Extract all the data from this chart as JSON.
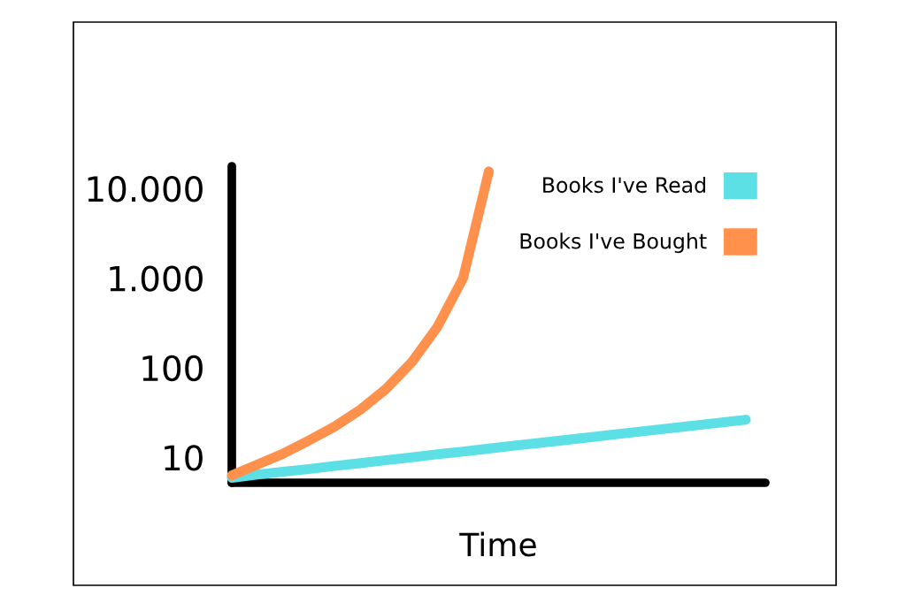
{
  "chart_data": {
    "type": "line",
    "xlabel": "Time",
    "categories": [
      null,
      null,
      null,
      null,
      null,
      null,
      null,
      null,
      null,
      null,
      null,
      null,
      null,
      null,
      null,
      null,
      null,
      null,
      null,
      null,
      null
    ],
    "series": [
      {
        "name": "Books I've Read",
        "color": "#5ce0e6",
        "values": [
          5.9,
          6.4,
          6.9,
          7.4,
          8.0,
          8.6,
          9.3,
          10,
          10.8,
          11.6,
          12.5,
          13.5,
          14.5,
          15.6,
          16.8,
          18.1,
          19.5,
          21,
          22.6,
          24.4,
          26.3
        ]
      },
      {
        "name": "Books I've Bought",
        "color": "#ff914d",
        "values": [
          6.3,
          8.3,
          11,
          15.4,
          22,
          34,
          58,
          115,
          285,
          1000,
          15500,
          null,
          null,
          null,
          null,
          null,
          null,
          null,
          null,
          null,
          null
        ]
      }
    ],
    "log": "y",
    "ylim": [
      5.2,
      17700
    ],
    "yticks": [
      10,
      100,
      {
        "value": 1000,
        "label": "1.000"
      },
      {
        "value": 10000,
        "label": "10.000"
      }
    ],
    "tick_labels": "y",
    "legend": "top right",
    "grid": false,
    "marker": "none",
    "line_style": "solid"
  }
}
